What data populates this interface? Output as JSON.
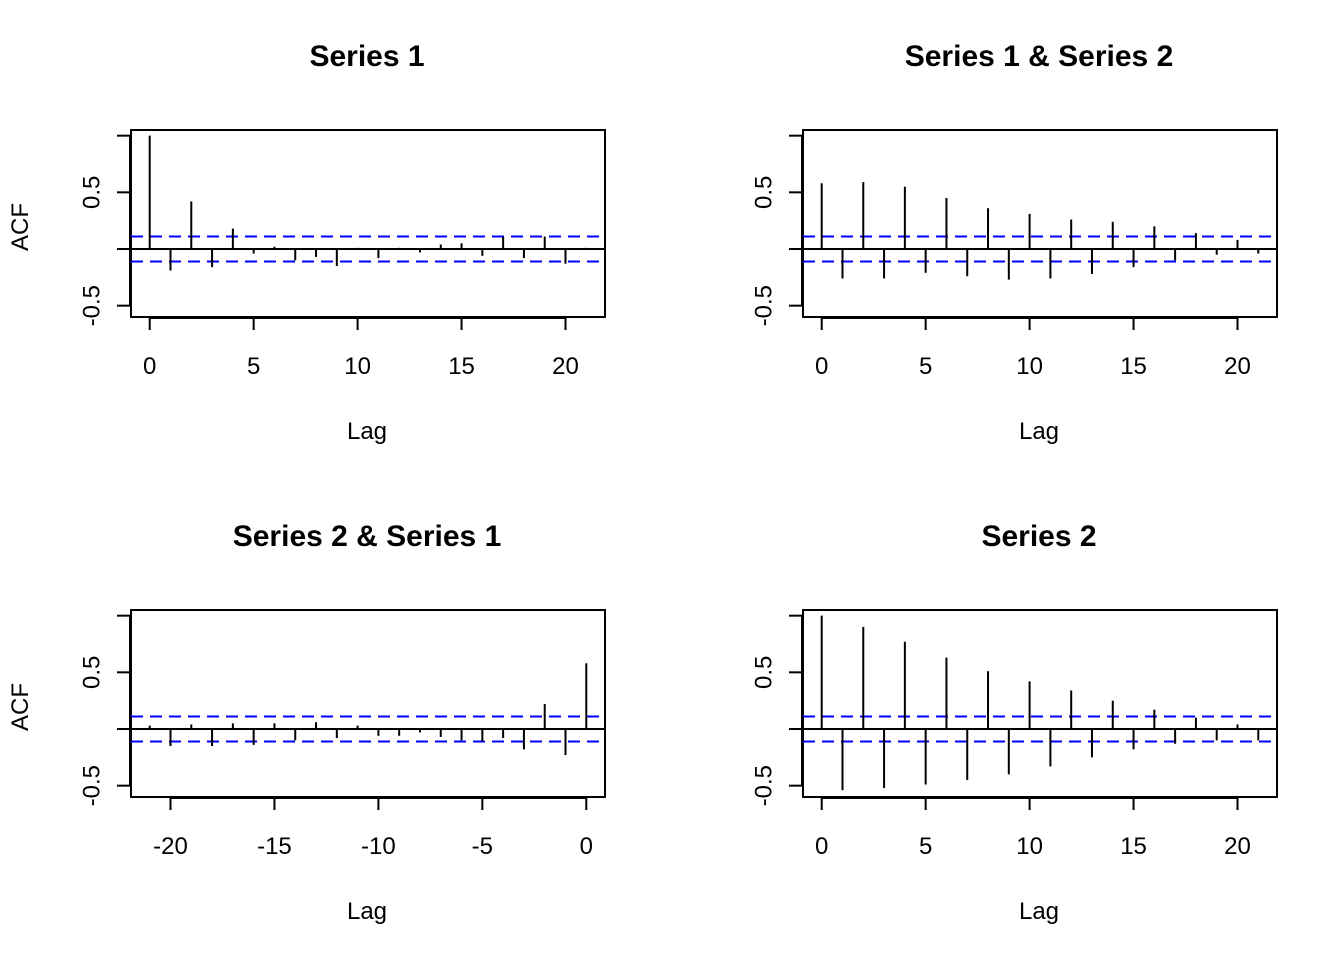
{
  "figure": {
    "background": "#ffffff",
    "colors": {
      "axis": "#000000",
      "bars": "#000000",
      "ci": "#0000ff"
    }
  },
  "chart_data": [
    {
      "type": "bar",
      "title": "Series 1",
      "xlabel": "Lag",
      "ylabel": "ACF",
      "xlim": [
        -0.9,
        21.9
      ],
      "ylim": [
        -0.6,
        1.05
      ],
      "xticks": [
        0,
        5,
        10,
        15,
        20
      ],
      "xtick_labels": [
        "0",
        "5",
        "10",
        "15",
        "20"
      ],
      "yticks": [
        -0.5,
        0,
        0.5,
        1
      ],
      "ytick_labels": [
        "-0.5",
        "",
        "0.5",
        ""
      ],
      "ci": 0.11,
      "x": [
        0,
        1,
        2,
        3,
        4,
        5,
        6,
        7,
        8,
        9,
        10,
        11,
        12,
        13,
        14,
        15,
        16,
        17,
        18,
        19,
        20,
        21
      ],
      "values": [
        1.0,
        -0.19,
        0.42,
        -0.16,
        0.18,
        -0.04,
        0.02,
        -0.1,
        -0.07,
        -0.15,
        0.01,
        -0.08,
        0.01,
        -0.03,
        0.04,
        0.05,
        -0.06,
        0.11,
        -0.08,
        0.11,
        -0.13,
        0.01
      ]
    },
    {
      "type": "bar",
      "title": "Series 1 & Series 2",
      "xlabel": "Lag",
      "ylabel": "",
      "xlim": [
        -0.9,
        21.9
      ],
      "ylim": [
        -0.6,
        1.05
      ],
      "xticks": [
        0,
        5,
        10,
        15,
        20
      ],
      "xtick_labels": [
        "0",
        "5",
        "10",
        "15",
        "20"
      ],
      "yticks": [
        -0.5,
        0,
        0.5,
        1
      ],
      "ytick_labels": [
        "-0.5",
        "",
        "0.5",
        ""
      ],
      "ci": 0.11,
      "x": [
        0,
        1,
        2,
        3,
        4,
        5,
        6,
        7,
        8,
        9,
        10,
        11,
        12,
        13,
        14,
        15,
        16,
        17,
        18,
        19,
        20,
        21
      ],
      "values": [
        0.58,
        -0.26,
        0.59,
        -0.26,
        0.55,
        -0.21,
        0.45,
        -0.24,
        0.36,
        -0.27,
        0.31,
        -0.26,
        0.26,
        -0.22,
        0.24,
        -0.16,
        0.2,
        -0.1,
        0.14,
        -0.05,
        0.08,
        -0.04
      ]
    },
    {
      "type": "bar",
      "title": "Series 2 & Series 1",
      "xlabel": "Lag",
      "ylabel": "ACF",
      "xlim": [
        -21.9,
        0.9
      ],
      "ylim": [
        -0.6,
        1.05
      ],
      "xticks": [
        -20,
        -15,
        -10,
        -5,
        0
      ],
      "xtick_labels": [
        "-20",
        "-15",
        "-10",
        "-5",
        "0"
      ],
      "yticks": [
        -0.5,
        0,
        0.5,
        1
      ],
      "ytick_labels": [
        "-0.5",
        "",
        "0.5",
        ""
      ],
      "ci": 0.11,
      "x": [
        -21,
        -20,
        -19,
        -18,
        -17,
        -16,
        -15,
        -14,
        -13,
        -12,
        -11,
        -10,
        -9,
        -8,
        -7,
        -6,
        -5,
        -4,
        -3,
        -2,
        -1,
        0
      ],
      "values": [
        0.03,
        -0.15,
        0.04,
        -0.15,
        0.05,
        -0.14,
        0.05,
        -0.1,
        0.06,
        -0.08,
        0.03,
        -0.06,
        -0.06,
        -0.03,
        -0.07,
        -0.1,
        -0.11,
        -0.08,
        -0.18,
        0.22,
        -0.23,
        0.58
      ]
    },
    {
      "type": "bar",
      "title": "Series 2",
      "xlabel": "Lag",
      "ylabel": "",
      "xlim": [
        -0.9,
        21.9
      ],
      "ylim": [
        -0.6,
        1.05
      ],
      "xticks": [
        0,
        5,
        10,
        15,
        20
      ],
      "xtick_labels": [
        "0",
        "5",
        "10",
        "15",
        "20"
      ],
      "yticks": [
        -0.5,
        0,
        0.5,
        1
      ],
      "ytick_labels": [
        "-0.5",
        "",
        "0.5",
        ""
      ],
      "ci": 0.11,
      "x": [
        0,
        1,
        2,
        3,
        4,
        5,
        6,
        7,
        8,
        9,
        10,
        11,
        12,
        13,
        14,
        15,
        16,
        17,
        18,
        19,
        20,
        21
      ],
      "values": [
        1.0,
        -0.54,
        0.9,
        -0.52,
        0.77,
        -0.49,
        0.63,
        -0.45,
        0.51,
        -0.4,
        0.42,
        -0.33,
        0.34,
        -0.25,
        0.25,
        -0.18,
        0.17,
        -0.13,
        0.1,
        -0.1,
        0.04,
        -0.1
      ]
    }
  ]
}
